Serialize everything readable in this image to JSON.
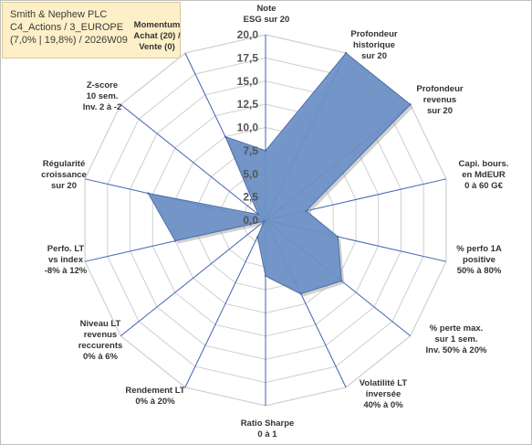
{
  "info_box": {
    "line1": "Smith & Nephew PLC",
    "line2": "C4_Actions / 3_EUROPE",
    "line3": "(7,0% | 19,8%) / 2026W09"
  },
  "chart_data": {
    "type": "radar",
    "title": "",
    "rlim": [
      0,
      20
    ],
    "grid": true,
    "tick_labels": [
      "0,0",
      "2,5",
      "5,0",
      "7,5",
      "10,0",
      "12,5",
      "15,0",
      "17,5",
      "20,0"
    ],
    "axes": [
      [
        "Note",
        "ESG sur 20"
      ],
      [
        "Profondeur",
        "historique",
        "sur 20"
      ],
      [
        "Profondeur",
        "revenus",
        "sur 20"
      ],
      [
        "Capi. bours.",
        "en MdEUR",
        "0 à 60 G€"
      ],
      [
        "% perfo 1A",
        "positive",
        "50% à 80%"
      ],
      [
        "% perte max.",
        "sur 1 sem.",
        "Inv. 50% à 20%"
      ],
      [
        "Volatilité LT",
        "inversée",
        "40% à 0%"
      ],
      [
        "Ratio Sharpe",
        "0 à 1"
      ],
      [
        "Rendement LT",
        "0% à 20%"
      ],
      [
        "Niveau LT",
        "revenus",
        "reccurents",
        "0% à 6%"
      ],
      [
        "Perfo. LT",
        "vs index",
        "-8% à 12%"
      ],
      [
        "Régularité",
        "croissance",
        "sur 20"
      ],
      [
        "Z-score",
        "10 sem.",
        "Inv. 2 à -2"
      ],
      [
        "Momentum",
        "Achat (20) /",
        "Vente (0)"
      ]
    ],
    "values": [
      7.5,
      20.0,
      20.0,
      4.5,
      8.0,
      10.5,
      8.8,
      6.0,
      2.0,
      0.2,
      10.0,
      13.0,
      1.0,
      10.0
    ],
    "colors": {
      "fill": "#6a8fc6",
      "stroke": "#4f6fa8",
      "grid": "#cfcfcf",
      "axis": "#3d62b3"
    }
  }
}
